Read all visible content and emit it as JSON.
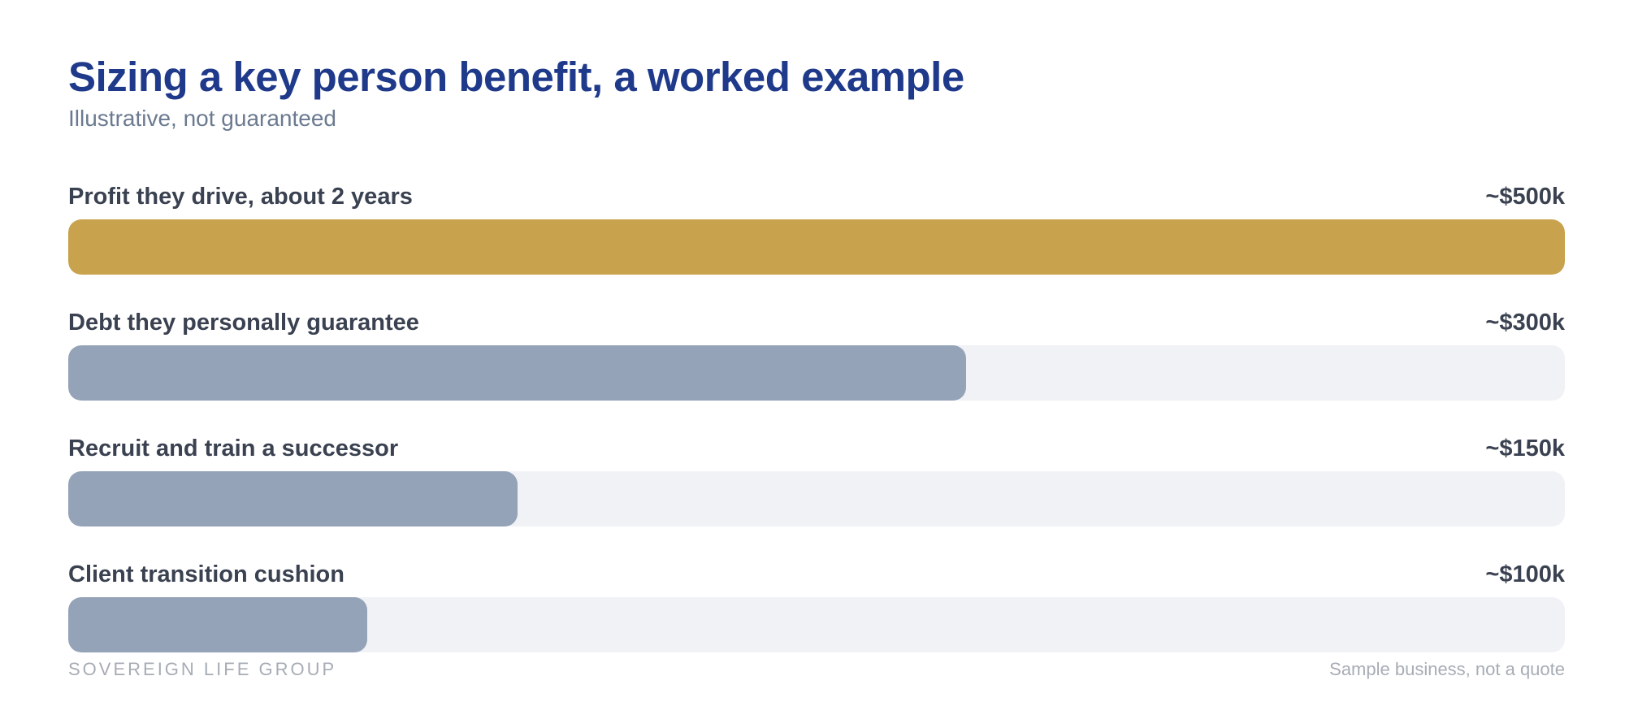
{
  "header": {
    "title": "Sizing a key person benefit, a worked example",
    "subtitle": "Illustrative, not guaranteed"
  },
  "chart_data": {
    "type": "bar",
    "orientation": "horizontal",
    "categories": [
      "Profit they drive, about 2 years",
      "Debt they personally guarantee",
      "Recruit and train a successor",
      "Client transition cushion"
    ],
    "values": [
      500,
      300,
      150,
      100
    ],
    "value_labels": [
      "~$500k",
      "~$300k",
      "~$150k",
      "~$100k"
    ],
    "unit": "$k",
    "xlim": [
      0,
      500
    ],
    "grid": false,
    "colors": {
      "highlight": "#c8a24c",
      "default": "#94a3b8",
      "track": "#f1f2f6"
    }
  },
  "footer": {
    "brand": "SOVEREIGN LIFE GROUP",
    "note": "Sample business, not a quote"
  }
}
